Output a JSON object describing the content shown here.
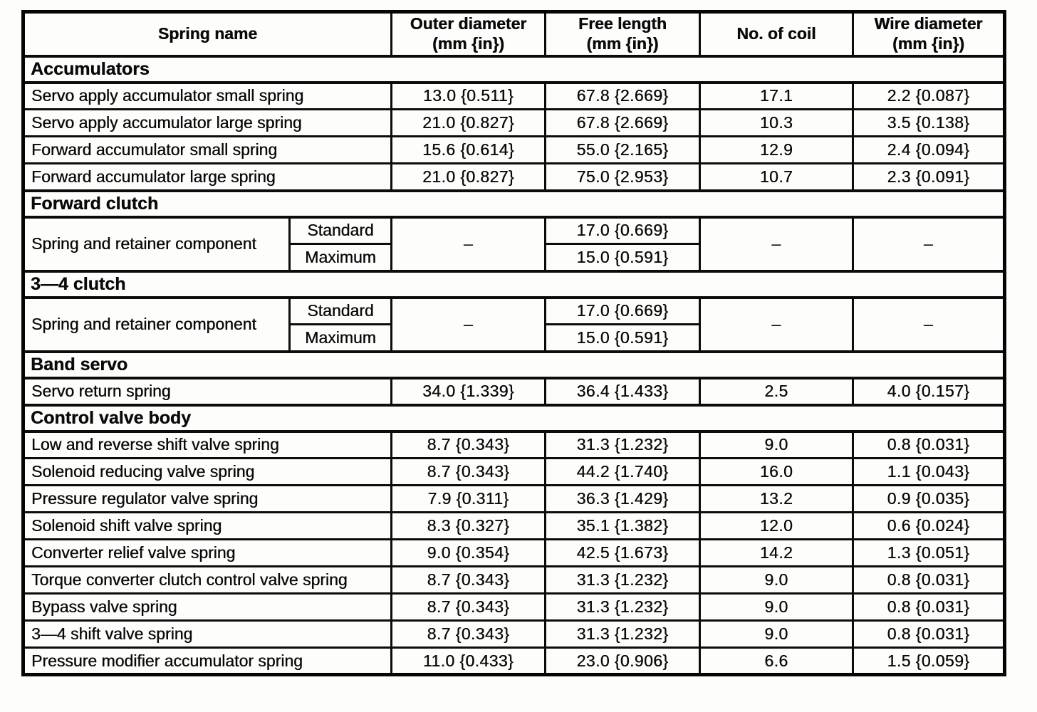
{
  "table": {
    "header": {
      "spring_name": "Spring name",
      "outer_diameter": "Outer diameter\n(mm {in})",
      "free_length": "Free length\n(mm {in})",
      "no_of_coil": "No. of coil",
      "wire_diameter": "Wire diameter\n(mm {in})"
    },
    "sections": [
      {
        "title": "Accumulators",
        "rows": [
          {
            "name": "Servo apply accumulator small spring",
            "outer": "13.0 {0.511}",
            "free": "67.8 {2.669}",
            "coil": "17.1",
            "wire": "2.2 {0.087}"
          },
          {
            "name": "Servo apply accumulator large spring",
            "outer": "21.0 {0.827}",
            "free": "67.8 {2.669}",
            "coil": "10.3",
            "wire": "3.5 {0.138}"
          },
          {
            "name": "Forward accumulator small spring",
            "outer": "15.6 {0.614}",
            "free": "55.0 {2.165}",
            "coil": "12.9",
            "wire": "2.4 {0.094}"
          },
          {
            "name": "Forward accumulator large spring",
            "outer": "21.0 {0.827}",
            "free": "75.0 {2.953}",
            "coil": "10.7",
            "wire": "2.3 {0.091}"
          }
        ]
      },
      {
        "title": "Forward clutch",
        "component": {
          "name": "Spring and retainer component",
          "standard_label": "Standard",
          "maximum_label": "Maximum",
          "outer": "–",
          "free_standard": "17.0 {0.669}",
          "free_maximum": "15.0 {0.591}",
          "coil": "–",
          "wire": "–"
        }
      },
      {
        "title": "3—4 clutch",
        "component": {
          "name": "Spring and retainer component",
          "standard_label": "Standard",
          "maximum_label": "Maximum",
          "outer": "–",
          "free_standard": "17.0 {0.669}",
          "free_maximum": "15.0 {0.591}",
          "coil": "–",
          "wire": "–"
        }
      },
      {
        "title": "Band servo",
        "rows": [
          {
            "name": "Servo return spring",
            "outer": "34.0 {1.339}",
            "free": "36.4 {1.433}",
            "coil": "2.5",
            "wire": "4.0 {0.157}"
          }
        ]
      },
      {
        "title": "Control valve body",
        "rows": [
          {
            "name": "Low and reverse shift valve spring",
            "outer": "8.7 {0.343}",
            "free": "31.3 {1.232}",
            "coil": "9.0",
            "wire": "0.8 {0.031}"
          },
          {
            "name": "Solenoid reducing valve spring",
            "outer": "8.7 {0.343}",
            "free": "44.2 {1.740}",
            "coil": "16.0",
            "wire": "1.1 {0.043}"
          },
          {
            "name": "Pressure regulator valve spring",
            "outer": "7.9 {0.311}",
            "free": "36.3 {1.429}",
            "coil": "13.2",
            "wire": "0.9 {0.035}"
          },
          {
            "name": "Solenoid shift valve spring",
            "outer": "8.3 {0.327}",
            "free": "35.1 {1.382}",
            "coil": "12.0",
            "wire": "0.6 {0.024}"
          },
          {
            "name": "Converter relief valve spring",
            "outer": "9.0 {0.354}",
            "free": "42.5 {1.673}",
            "coil": "14.2",
            "wire": "1.3 {0.051}"
          },
          {
            "name": "Torque converter clutch control valve spring",
            "outer": "8.7 {0.343}",
            "free": "31.3 {1.232}",
            "coil": "9.0",
            "wire": "0.8 {0.031}"
          },
          {
            "name": "Bypass valve spring",
            "outer": "8.7 {0.343}",
            "free": "31.3 {1.232}",
            "coil": "9.0",
            "wire": "0.8 {0.031}"
          },
          {
            "name": "3—4 shift valve spring",
            "outer": "8.7 {0.343}",
            "free": "31.3 {1.232}",
            "coil": "9.0",
            "wire": "0.8 {0.031}"
          },
          {
            "name": "Pressure modifier accumulator spring",
            "outer": "11.0 {0.433}",
            "free": "23.0 {0.906}",
            "coil": "6.6",
            "wire": "1.5 {0.059}"
          }
        ]
      }
    ]
  }
}
